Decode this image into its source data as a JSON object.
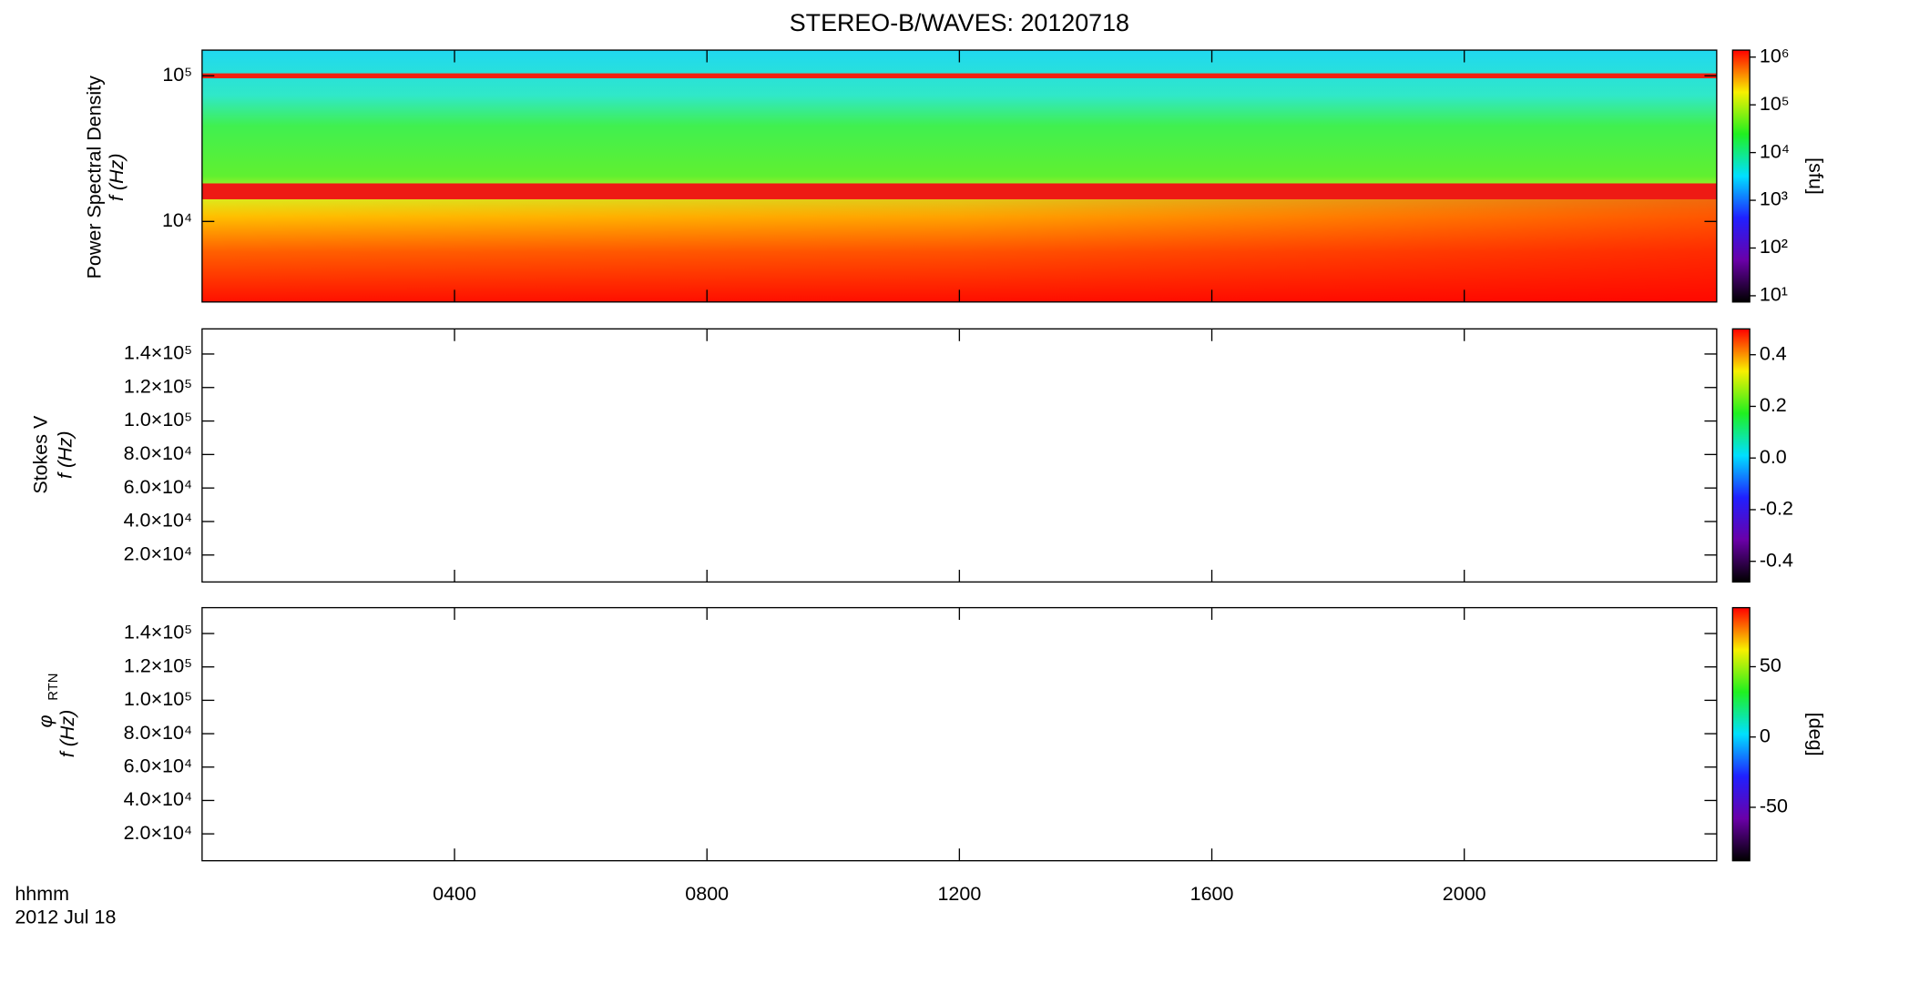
{
  "title": "STEREO-B/WAVES: 20120718",
  "x_axis": {
    "labels": [
      "hhmm",
      "2012 Jul 18"
    ]
  },
  "chart_data": [
    {
      "type": "heatmap",
      "ylabel": [
        "Power Spectral Density",
        "f (Hz)"
      ],
      "log": true,
      "ylim": [
        2800,
        150000
      ],
      "yticks": [
        {
          "value": 10000,
          "label": "10⁴"
        },
        {
          "value": 100000,
          "label": "10⁵"
        }
      ],
      "colorbar": {
        "label": "[sfu]",
        "log": true,
        "lim": [
          7.4,
          1400000
        ],
        "ticks": [
          {
            "value": 10,
            "label": "10¹"
          },
          {
            "value": 100,
            "label": "10²"
          },
          {
            "value": 1000,
            "label": "10³"
          },
          {
            "value": 10000,
            "label": "10⁴"
          },
          {
            "value": 100000,
            "label": "10⁵"
          },
          {
            "value": 1000000,
            "label": "10⁶"
          }
        ],
        "colors": [
          "#000000",
          "#6a00a8",
          "#2020ff",
          "#00e0ff",
          "#20f020",
          "#f8f000",
          "#ff0000"
        ]
      }
    },
    {
      "type": "heatmap",
      "ylabel": [
        "Stokes V",
        "f (Hz)"
      ],
      "log": false,
      "ylim": [
        3900,
        155000
      ],
      "yticks": [
        {
          "value": 20000,
          "label": "2.0×10⁴"
        },
        {
          "value": 40000,
          "label": "4.0×10⁴"
        },
        {
          "value": 60000,
          "label": "6.0×10⁴"
        },
        {
          "value": 80000,
          "label": "8.0×10⁴"
        },
        {
          "value": 100000,
          "label": "1.0×10⁵"
        },
        {
          "value": 120000,
          "label": "1.2×10⁵"
        },
        {
          "value": 140000,
          "label": "1.4×10⁵"
        }
      ],
      "colorbar": {
        "log": false,
        "lim": [
          -0.48,
          0.5
        ],
        "ticks": [
          -0.4,
          -0.2,
          {
            "value": 0,
            "label": "0.0"
          },
          0.2,
          0.4
        ],
        "colors": [
          "#000000",
          "#6a00a8",
          "#2020ff",
          "#00e0ff",
          "#20f020",
          "#f8f000",
          "#ff0000"
        ]
      }
    },
    {
      "type": "heatmap",
      "ylabel": [
        "φ",
        "RTN",
        "f (Hz)"
      ],
      "log": false,
      "ylim": [
        3900,
        155500
      ],
      "yticks": [
        {
          "value": 20000,
          "label": "2.0×10⁴"
        },
        {
          "value": 40000,
          "label": "4.0×10⁴"
        },
        {
          "value": 60000,
          "label": "6.0×10⁴"
        },
        {
          "value": 80000,
          "label": "8.0×10⁴"
        },
        {
          "value": 100000,
          "label": "1.0×10⁵"
        },
        {
          "value": 120000,
          "label": "1.2×10⁵"
        },
        {
          "value": 140000,
          "label": "1.4×10⁵"
        }
      ],
      "xlim": [
        0,
        24
      ],
      "xticks": [
        {
          "value": 4,
          "label": "0400"
        },
        {
          "value": 8,
          "label": "0800"
        },
        {
          "value": 12,
          "label": "1200"
        },
        {
          "value": 16,
          "label": "1600"
        },
        {
          "value": 20,
          "label": "2000"
        }
      ],
      "colorbar": {
        "label": "[deg]",
        "log": false,
        "lim": [
          -88,
          92
        ],
        "ticks": [
          -50,
          0,
          50
        ],
        "colors": [
          "#000000",
          "#6a00a8",
          "#2020ff",
          "#00e0ff",
          "#20f020",
          "#f8f000",
          "#ff0000"
        ]
      }
    }
  ]
}
